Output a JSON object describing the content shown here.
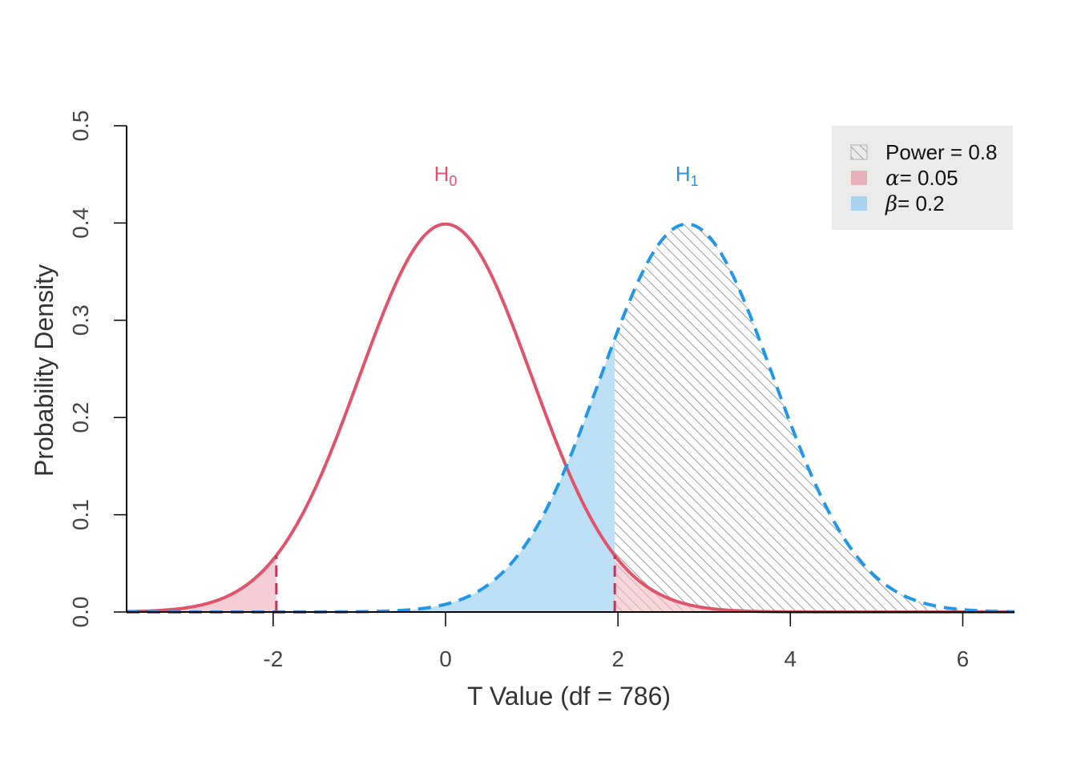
{
  "chart_data": {
    "type": "area",
    "xlabel": "T Value (df = 786)",
    "ylabel": "Probability Density",
    "xlim": [
      -3.7,
      6.6
    ],
    "ylim": [
      0,
      0.5
    ],
    "x_ticks": [
      -2,
      0,
      2,
      4,
      6
    ],
    "x_tick_labels": [
      "-2",
      "0",
      "2",
      "4",
      "6"
    ],
    "y_ticks": [
      0.0,
      0.1,
      0.2,
      0.3,
      0.4,
      0.5
    ],
    "y_tick_labels": [
      "0.0",
      "0.1",
      "0.2",
      "0.3",
      "0.4",
      "0.5"
    ],
    "critical_values": [
      -1.963,
      1.963
    ],
    "noncentrality": 2.8,
    "series": [
      {
        "name": "H0",
        "label_main": "H",
        "label_sub": "0",
        "mean": 0,
        "sd": 1,
        "line_style": "solid",
        "color": "#DF536B"
      },
      {
        "name": "H1",
        "label_main": "H",
        "label_sub": "1",
        "mean": 2.8,
        "sd": 1,
        "line_style": "dashed",
        "color": "#2297E6"
      }
    ],
    "shaded_regions": [
      {
        "name": "alpha",
        "fill": "#F2BCC5",
        "description_range": "tails of H0 beyond critical values"
      },
      {
        "name": "beta",
        "fill": "#BDE0F7",
        "description_range": "H1 below upper critical value"
      },
      {
        "name": "power",
        "fill": "hatched-gray",
        "description_range": "H1 above upper critical value"
      }
    ],
    "legend": {
      "position": "top-right",
      "entries": [
        {
          "key": "power",
          "symbol": "",
          "text": "Power = 0.8",
          "swatch": "hatched-gray"
        },
        {
          "key": "alpha",
          "symbol": "α",
          "text": "= 0.05",
          "swatch": "#E8B0BA"
        },
        {
          "key": "beta",
          "symbol": "β",
          "text": "= 0.2",
          "swatch": "#A9D3F0"
        }
      ]
    },
    "colors": {
      "h0": "#DF536B",
      "h1": "#2297E6",
      "alpha_fill": "#F2BCC5",
      "beta_fill": "#BDE0F7",
      "hatch": "#9E9E9E",
      "legend_bg": "#EBEBEB"
    }
  }
}
